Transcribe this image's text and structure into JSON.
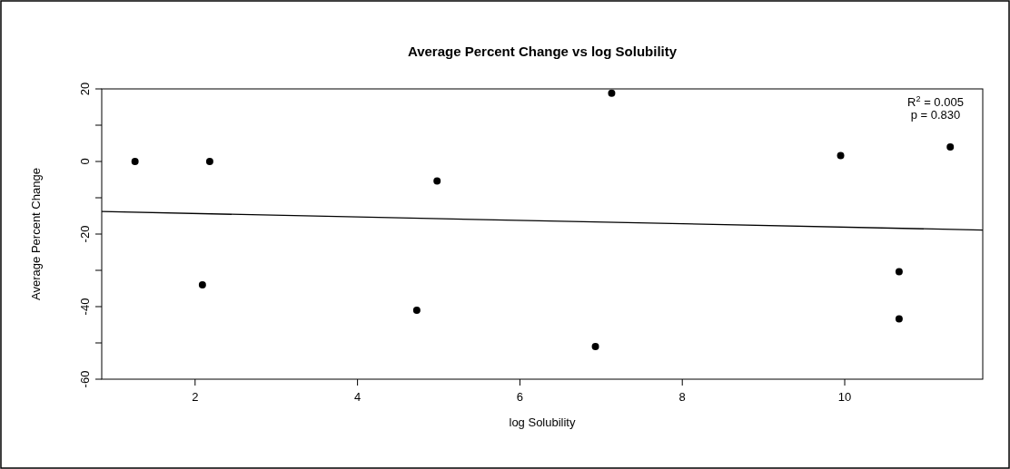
{
  "chart_data": {
    "type": "scatter",
    "title": "Average Percent Change vs log Solubility",
    "xlabel": "log Solubility",
    "ylabel": "Average Percent Change",
    "annotations": [
      "R$^{2}$ = 0.005",
      "p = 0.830"
    ],
    "series": [
      {
        "color": "#000000",
        "x": [
          1.26,
          2.18,
          2.09,
          4.98,
          4.73,
          7.13,
          6.93,
          9.95,
          11.3,
          10.67,
          10.67
        ],
        "values": [
          0,
          0,
          -34,
          -5.4,
          -41,
          18.8,
          -51,
          1.6,
          4.0,
          -30.4,
          -43.4
        ],
        "marker": "circle"
      },
      {
        "type": "line",
        "color": "#000000",
        "x": [
          0.85,
          11.7
        ],
        "values": [
          -13.8,
          -18.9
        ],
        "line_style": "solid"
      }
    ],
    "xlim": [
      0.85,
      11.7
    ],
    "xticks": [
      2,
      4,
      6,
      8,
      10
    ],
    "ylim": [
      -60,
      20
    ],
    "yticks": [
      {
        "value": -60,
        "label": "-60"
      },
      {
        "value": -50,
        "label": null
      },
      {
        "value": -40,
        "label": "-40"
      },
      {
        "value": -30,
        "label": null
      },
      {
        "value": -20,
        "label": "-20"
      },
      {
        "value": -10,
        "label": null
      },
      {
        "value": 0,
        "label": "0"
      },
      {
        "value": 10,
        "label": null
      },
      {
        "value": 20,
        "label": "20"
      }
    ],
    "grid": false
  }
}
